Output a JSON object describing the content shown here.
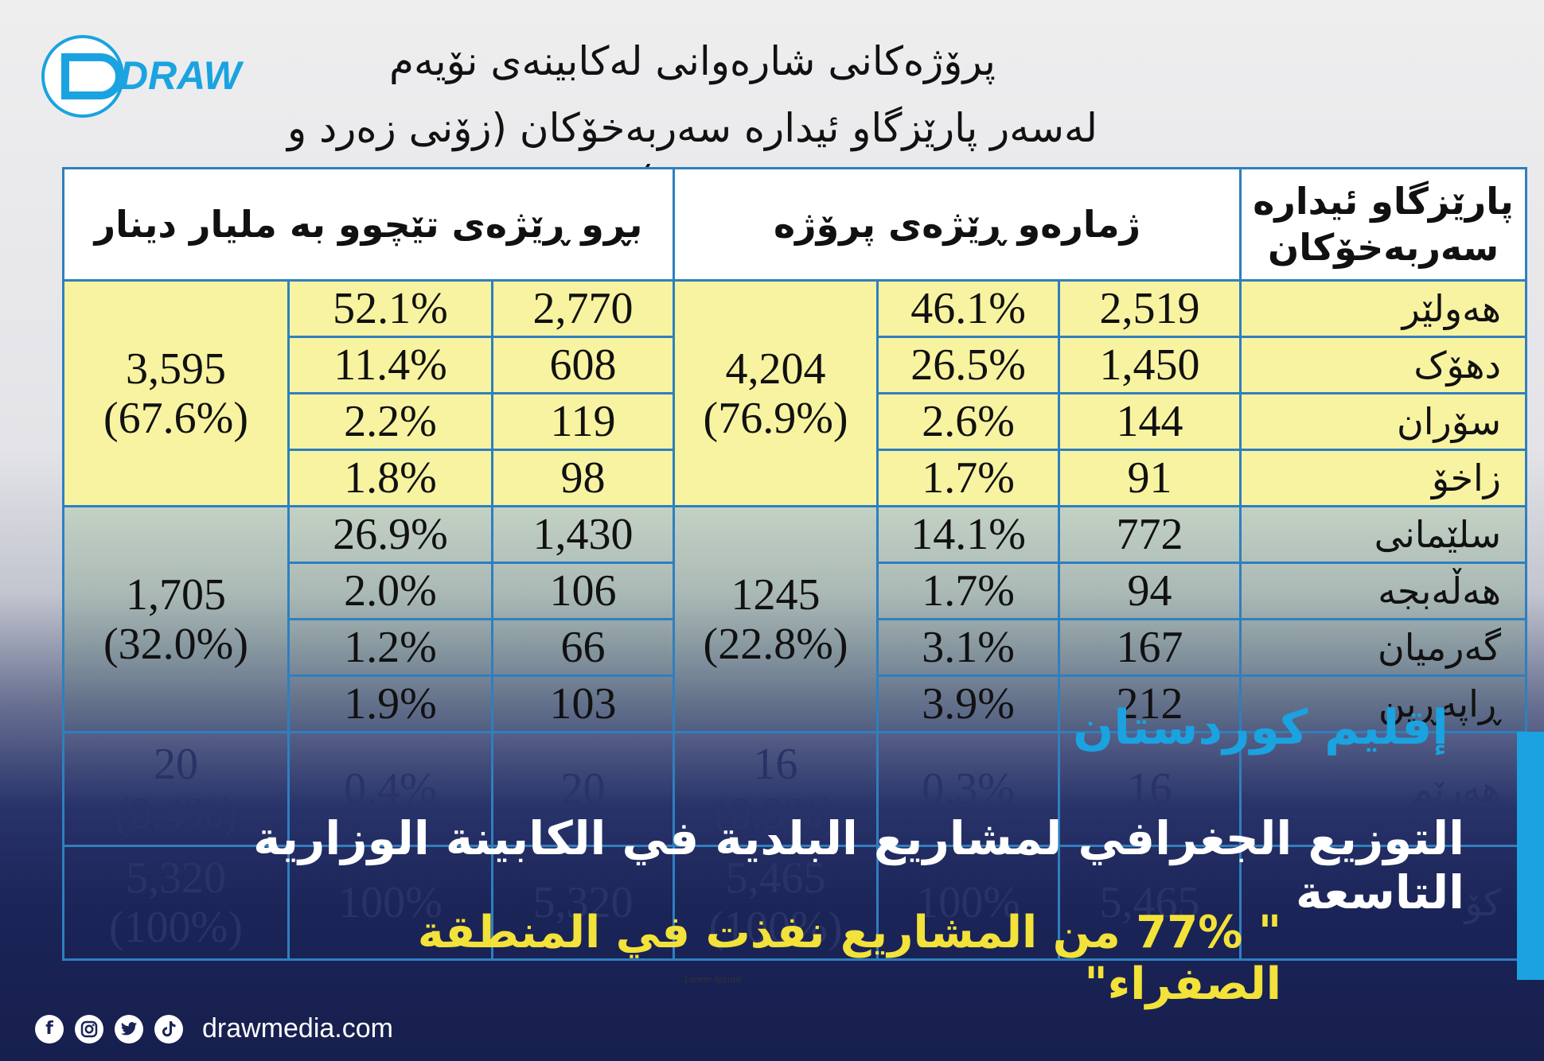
{
  "logo": {
    "text": "DRAW"
  },
  "title": {
    "line1": "پرۆژەکانی شارەوانی لەکابینەی نۆیەم",
    "line2": "لەسەر پارێزگاو ئیدارە سەربەخۆکان (زۆنی زەرد و سەوز)"
  },
  "table": {
    "headers": {
      "governorate": "پارێزگاو ئیدارە سەربەخۆکان",
      "projects": "ژمارەو ڕێژەی پرۆژە",
      "cost": "بڕو ڕێژەی تێچوو به مليار دينار"
    },
    "yellow": {
      "projects_total": "4,204",
      "projects_pct": "(76.9%)",
      "cost_total": "3,595",
      "cost_pct": "(67.6%)",
      "rows": [
        {
          "name": "هەولێر",
          "projects": "2,519",
          "projects_pct": "46.1%",
          "cost": "2,770",
          "cost_pct": "52.1%"
        },
        {
          "name": "دهۆک",
          "projects": "1,450",
          "projects_pct": "26.5%",
          "cost": "608",
          "cost_pct": "11.4%"
        },
        {
          "name": "سۆران",
          "projects": "144",
          "projects_pct": "2.6%",
          "cost": "119",
          "cost_pct": "2.2%"
        },
        {
          "name": "زاخۆ",
          "projects": "91",
          "projects_pct": "1.7%",
          "cost": "98",
          "cost_pct": "1.8%"
        }
      ]
    },
    "green": {
      "projects_total": "1245",
      "projects_pct": "(22.8%)",
      "cost_total": "1,705",
      "cost_pct": "(32.0%)",
      "rows": [
        {
          "name": "سلێمانی",
          "projects": "772",
          "projects_pct": "14.1%",
          "cost": "1,430",
          "cost_pct": "26.9%"
        },
        {
          "name": "هەڵەبجە",
          "projects": "94",
          "projects_pct": "1.7%",
          "cost": "106",
          "cost_pct": "2.0%"
        },
        {
          "name": "گەرمیان",
          "projects": "167",
          "projects_pct": "3.1%",
          "cost": "66",
          "cost_pct": "1.2%"
        },
        {
          "name": "ڕاپەڕین",
          "projects": "212",
          "projects_pct": "3.9%",
          "cost": "103",
          "cost_pct": "1.9%"
        }
      ]
    },
    "region_row": {
      "name": "هەرێم",
      "projects": "16",
      "projects_pct": "0.3%",
      "projects_merge": "16",
      "projects_merge_pct": "(0.3%)",
      "cost": "20",
      "cost_pct": "0.4%",
      "cost_merge": "20",
      "cost_merge_pct": "(0.4%)"
    },
    "total_row": {
      "name": "کۆ",
      "projects": "5,465",
      "projects_pct": "100%",
      "projects_merge": "5,465",
      "projects_merge_pct": "(100%)",
      "cost": "5,320",
      "cost_pct": "100%",
      "cost_merge": "5,320",
      "cost_merge_pct": "(100%)"
    }
  },
  "overlay": {
    "region": "إقليم كوردستان",
    "headline": "التوزيع الجغرافي لمشاريع البلدية في الكابينة الوزارية التاسعة",
    "subheadline": "\" 77% من المشاريع نفذت في  المنطقة الصفراء\"",
    "lorem": "Lorem Ipsum"
  },
  "footer": {
    "website": "drawmedia.com",
    "icons": [
      "facebook-icon",
      "instagram-icon",
      "twitter-icon",
      "tiktok-icon"
    ]
  },
  "colors": {
    "accent": "#1aa3e0",
    "yellow_zone": "#f7f3a0",
    "headline": "#ffffff",
    "subheadline": "#f2e23a",
    "border": "#2f7fbf"
  }
}
